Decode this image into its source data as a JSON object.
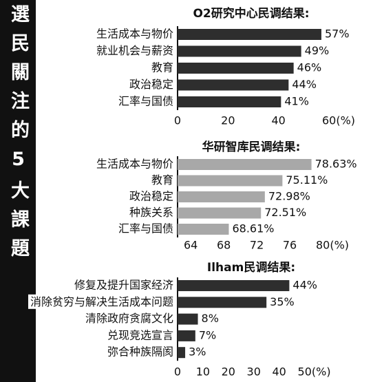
{
  "side_title": "選民關注的5大課題",
  "chart_data": [
    {
      "type": "bar",
      "orientation": "horizontal",
      "title": "O2研究中心民调结果:",
      "categories": [
        "生活成本与物价",
        "就业机会与薪资",
        "教育",
        "政治稳定",
        "汇率与国债"
      ],
      "values": [
        57,
        49,
        46,
        44,
        41
      ],
      "value_labels": [
        "57%",
        "49%",
        "46%",
        "44%",
        "41%"
      ],
      "color": "#2e2e2e",
      "xlim": [
        0,
        60
      ],
      "xticks": [
        0,
        20,
        40,
        {
          "value": 60,
          "label": "60(%)"
        }
      ]
    },
    {
      "type": "bar",
      "orientation": "horizontal",
      "title": "华研智库民调结果:",
      "categories": [
        "生活成本与物价",
        "教育",
        "政治稳定",
        "种族关系",
        "汇率与国债"
      ],
      "values": [
        78.63,
        75.11,
        72.98,
        72.51,
        68.61
      ],
      "value_labels": [
        "78.63%",
        "75.11%",
        "72.98%",
        "72.51%",
        "68.61%"
      ],
      "color": "#a8a8a8",
      "xlim": [
        62.4,
        81
      ],
      "xticks": [
        64,
        68,
        72,
        76,
        {
          "value": 80,
          "label": "80(%)"
        }
      ]
    },
    {
      "type": "bar",
      "orientation": "horizontal",
      "title": "Ilham民调结果:",
      "categories": [
        "修复及提升国家经济",
        "消除贫穷与解决生活成本问题",
        "清除政府贪腐文化",
        "兑现竞选宣言",
        "弥合种族隔阂"
      ],
      "values": [
        44,
        35,
        8,
        7,
        3
      ],
      "value_labels": [
        "44%",
        "35%",
        "8%",
        "7%",
        "3%"
      ],
      "color": "#2e2e2e",
      "xlim": [
        0,
        55
      ],
      "xticks": [
        0,
        10,
        20,
        30,
        40,
        {
          "value": 50,
          "label": "50(%)"
        }
      ]
    }
  ]
}
